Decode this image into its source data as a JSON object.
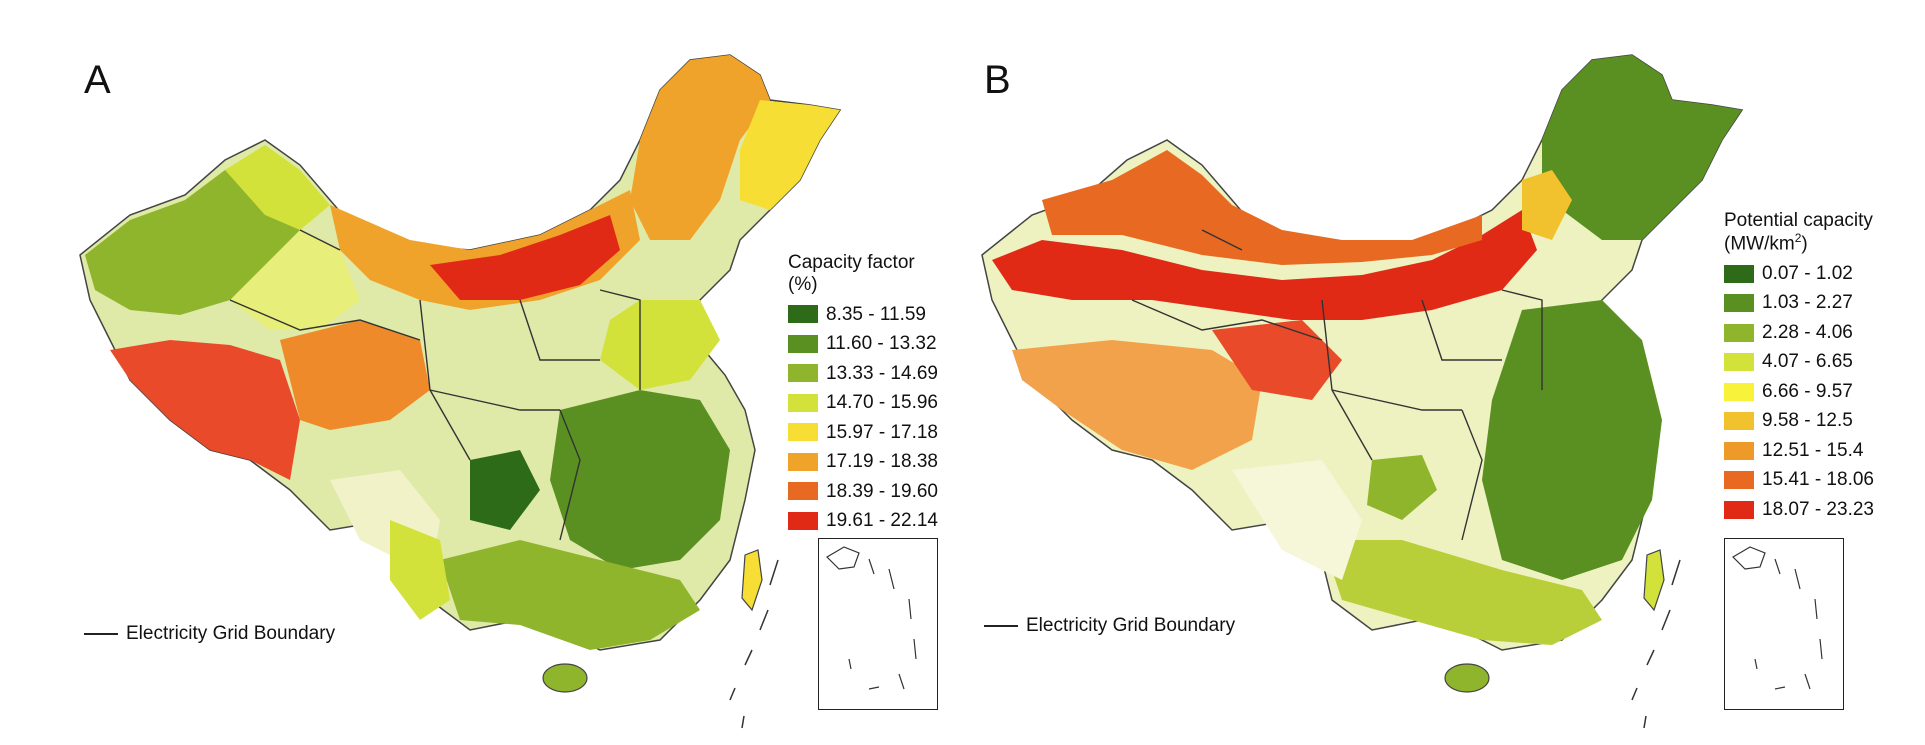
{
  "figure": {
    "panels": [
      {
        "letter": "A",
        "legend_title_line1": "Capacity factor",
        "legend_title_line2": "(%)",
        "legend": [
          {
            "label": "8.35 - 11.59",
            "color": "#2e6b18"
          },
          {
            "label": "11.60 - 13.32",
            "color": "#5a8f22"
          },
          {
            "label": "13.33 - 14.69",
            "color": "#8fb52c"
          },
          {
            "label": "14.70 - 15.96",
            "color": "#d3e23a"
          },
          {
            "label": "15.97 - 17.18",
            "color": "#f7de34"
          },
          {
            "label": "17.19 - 18.38",
            "color": "#f0a32a"
          },
          {
            "label": "18.39 - 19.60",
            "color": "#e86a22"
          },
          {
            "label": "19.61 - 22.14",
            "color": "#e02a15"
          }
        ],
        "boundary_label": "Electricity Grid Boundary"
      },
      {
        "letter": "B",
        "legend_title_line1": "Potential capacity",
        "legend_title_line2_prefix": "(MW/km",
        "legend_title_line2_sup": "2",
        "legend_title_line2_suffix": ")",
        "legend": [
          {
            "label": "0.07 - 1.02",
            "color": "#2e6b18"
          },
          {
            "label": "1.03 - 2.27",
            "color": "#5a8f22"
          },
          {
            "label": "2.28 - 4.06",
            "color": "#8fb52c"
          },
          {
            "label": "4.07 - 6.65",
            "color": "#d3e23a"
          },
          {
            "label": "6.66 - 9.57",
            "color": "#f8f23a"
          },
          {
            "label": "9.58 - 12.5",
            "color": "#f2c12e"
          },
          {
            "label": "12.51 - 15.4",
            "color": "#ee9a28"
          },
          {
            "label": "15.41 - 18.06",
            "color": "#e86a22"
          },
          {
            "label": "18.07 - 23.23",
            "color": "#e02a15"
          }
        ],
        "boundary_label": "Electricity Grid Boundary"
      }
    ]
  }
}
